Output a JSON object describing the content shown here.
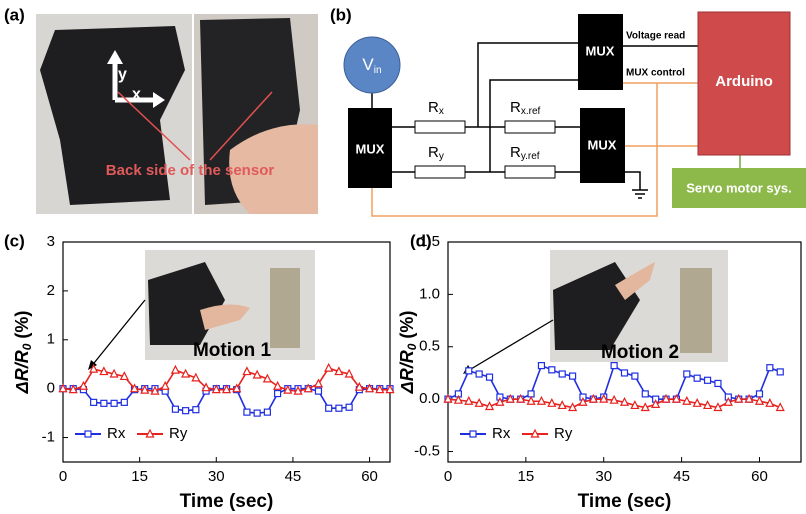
{
  "panel_labels": [
    "(a)",
    "(b)",
    "(c)",
    "(d)"
  ],
  "photo_a": {
    "axis_y": "y",
    "axis_x": "x",
    "caption": "Back side of the sensor"
  },
  "circuit": {
    "vin": {
      "main": "V",
      "sub": "in"
    },
    "mux_blocks": [
      "MUX",
      "MUX",
      "MUX"
    ],
    "resistors": [
      {
        "main": "R",
        "sub": "x"
      },
      {
        "main": "R",
        "sub": "x.ref"
      },
      {
        "main": "R",
        "sub": "y"
      },
      {
        "main": "R",
        "sub": "y.ref"
      }
    ],
    "voltage_read": "Voltage read",
    "mux_control": "MUX control",
    "arduino": "Arduino",
    "servo": "Servo motor sys."
  },
  "chart_data": [
    {
      "type": "line",
      "inset_label": "Motion 1",
      "xlabel": "Time (sec)",
      "ylabel": {
        "main": "ΔR/R",
        "sub": "0",
        "tail": " (%)"
      },
      "xlim": [
        0,
        64
      ],
      "ylim": [
        -1.5,
        3
      ],
      "xticks": [
        0,
        15,
        30,
        45,
        60
      ],
      "yticks": [
        -1,
        0,
        1,
        2,
        3
      ],
      "legend": "lower left",
      "x": [
        0,
        2,
        4,
        6,
        8,
        10,
        12,
        14,
        16,
        18,
        20,
        22,
        24,
        26,
        28,
        30,
        32,
        34,
        36,
        38,
        40,
        42,
        44,
        46,
        48,
        50,
        52,
        54,
        56,
        58,
        60,
        62,
        64
      ],
      "series": [
        {
          "name": "Rx",
          "color": "#1f2fe0",
          "marker": "square",
          "values": [
            0,
            0,
            -0.02,
            -0.28,
            -0.3,
            -0.3,
            -0.28,
            -0.02,
            0,
            0,
            -0.05,
            -0.42,
            -0.45,
            -0.43,
            -0.05,
            0,
            0,
            -0.02,
            -0.48,
            -0.5,
            -0.48,
            -0.1,
            0,
            0,
            0,
            -0.05,
            -0.4,
            -0.4,
            -0.38,
            -0.02,
            0,
            0,
            0
          ]
        },
        {
          "name": "Ry",
          "color": "#e8211d",
          "marker": "triangle",
          "values": [
            0,
            -0.02,
            0.05,
            0.4,
            0.35,
            0.3,
            0.25,
            0,
            -0.03,
            -0.05,
            0.05,
            0.38,
            0.3,
            0.22,
            0.02,
            -0.02,
            -0.02,
            0,
            0.35,
            0.28,
            0.2,
            0.05,
            -0.03,
            -0.05,
            0,
            0.1,
            0.42,
            0.35,
            0.3,
            0.03,
            0,
            -0.02,
            -0.02
          ]
        }
      ]
    },
    {
      "type": "line",
      "inset_label": "Motion 2",
      "xlabel": "Time (sec)",
      "ylabel": {
        "main": "ΔR/R",
        "sub": "0",
        "tail": " (%)"
      },
      "xlim": [
        0,
        68
      ],
      "ylim": [
        -0.6,
        1.5
      ],
      "xticks": [
        0,
        15,
        30,
        45,
        60
      ],
      "yticks": [
        -0.5,
        {
          "value": 0,
          "label": "0.0"
        },
        0.5,
        {
          "value": 1,
          "label": "1.0"
        },
        1.5
      ],
      "legend": "lower left",
      "x": [
        0,
        2,
        4,
        6,
        8,
        10,
        12,
        14,
        16,
        18,
        20,
        22,
        24,
        26,
        28,
        30,
        32,
        34,
        36,
        38,
        40,
        42,
        44,
        46,
        48,
        50,
        52,
        54,
        56,
        58,
        60,
        62,
        64
      ],
      "series": [
        {
          "name": "Rx",
          "color": "#1f2fe0",
          "marker": "square",
          "values": [
            0,
            0.05,
            0.27,
            0.24,
            0.21,
            0.02,
            0,
            0,
            0.05,
            0.32,
            0.28,
            0.24,
            0.22,
            0.02,
            0,
            0.02,
            0.32,
            0.25,
            0.22,
            0.05,
            0,
            0,
            0,
            0.24,
            0.2,
            0.18,
            0.15,
            0.02,
            0,
            0,
            0.05,
            0.3,
            0.26
          ]
        },
        {
          "name": "Ry",
          "color": "#e8211d",
          "marker": "triangle",
          "values": [
            0,
            -0.01,
            -0.02,
            -0.04,
            -0.07,
            -0.03,
            0,
            0,
            -0.02,
            -0.02,
            -0.04,
            -0.06,
            -0.08,
            -0.03,
            0,
            0,
            -0.01,
            -0.03,
            -0.06,
            -0.08,
            -0.05,
            0,
            0,
            -0.02,
            -0.04,
            -0.06,
            -0.08,
            -0.03,
            0,
            0,
            -0.02,
            -0.04,
            -0.08
          ]
        }
      ]
    }
  ]
}
